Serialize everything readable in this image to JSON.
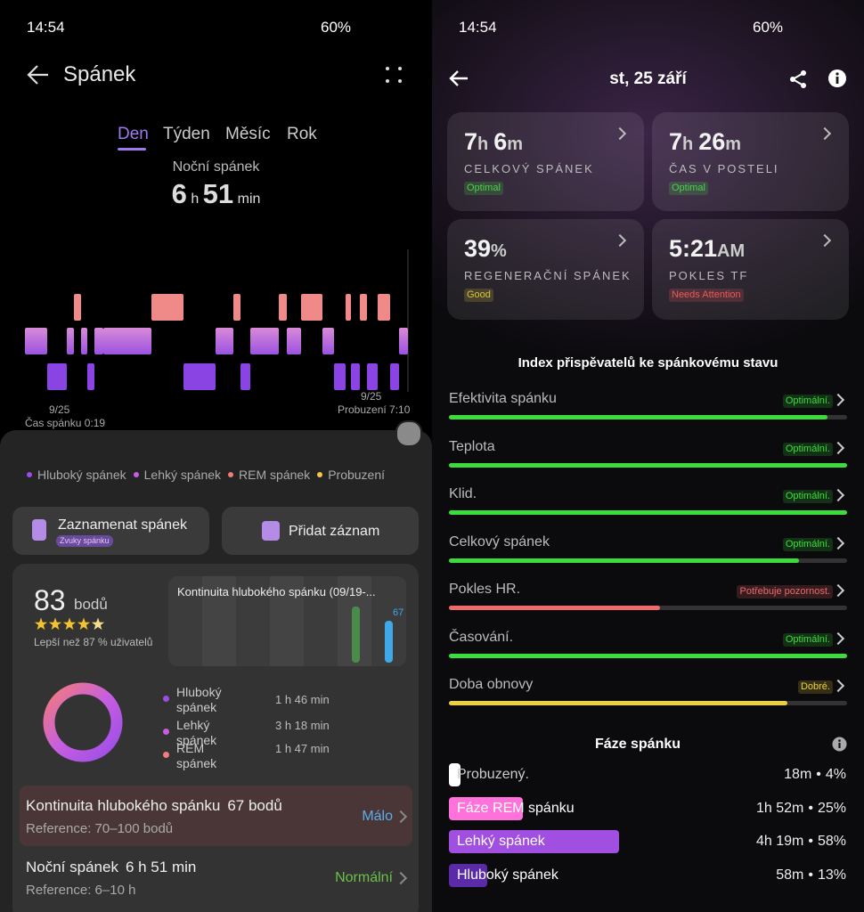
{
  "left": {
    "status": {
      "time": "14:54",
      "battery": "60%"
    },
    "header": {
      "title": "Spánek"
    },
    "tabs": [
      "Den",
      "Týden",
      "Měsíc",
      "Rok"
    ],
    "summary": {
      "label": "Noční spánek",
      "hours": "6",
      "hours_unit": "h",
      "minutes": "51",
      "minutes_unit": "min"
    },
    "hypnogram": {
      "start_date": "9/25",
      "start_label": "Čas spánku 0:19",
      "end_date": "9/25",
      "end_label": "Probuzení 7:10"
    },
    "legend": [
      {
        "label": "Hluboký spánek",
        "color": "#9b4de8"
      },
      {
        "label": "Lehký spánek",
        "color": "#c65ee0"
      },
      {
        "label": "REM spánek",
        "color": "#f27b7b"
      },
      {
        "label": "Probuzení",
        "color": "#f2c94c"
      }
    ],
    "buttons": [
      {
        "label": "Zaznamenat spánek",
        "sublabel": "Zvuky spánku"
      },
      {
        "label": "Přidat záznam"
      }
    ],
    "score": {
      "value": "83",
      "unit": "bodů",
      "comparison": "Lepší než 87 % uživatelů"
    },
    "continuity_chart": {
      "title": "Kontinuita hlubokého spánku (09/19-...",
      "value": 67,
      "max": 100
    },
    "breakdown": [
      {
        "label": "Hluboký spánek",
        "value": "1 h 46 min",
        "color": "#9b4de8"
      },
      {
        "label": "Lehký spánek",
        "value": "3 h 18 min",
        "color": "#c65ee0"
      },
      {
        "label": "REM spánek",
        "value": "1 h 47 min",
        "color": "#f27b7b"
      }
    ],
    "rows": [
      {
        "title": "Kontinuita hlubokého spánku",
        "value": "67 bodů",
        "reference": "Reference: 70–100 bodů",
        "status": "Málo",
        "color": "#5aaee8"
      },
      {
        "title": "Noční spánek",
        "value": "6 h 51 min",
        "reference": "Reference: 6–10 h",
        "status": "Normální",
        "color": "#6cc04a"
      }
    ]
  },
  "right": {
    "status": {
      "time": "14:54",
      "battery": "60%"
    },
    "header": {
      "date": "st, 25 září"
    },
    "cards": [
      {
        "value_parts": [
          "7",
          "h",
          "6",
          "m"
        ],
        "label": "CELKOVÝ SPÁNEK",
        "badge": "Optimal",
        "badge_color": "#4cd04c"
      },
      {
        "value_parts": [
          "7",
          "h",
          "26",
          "m"
        ],
        "label": "ČAS V POSTELI",
        "badge": "Optimal",
        "badge_color": "#4cd04c"
      },
      {
        "value_parts": [
          "39",
          "%"
        ],
        "label": "REGENERAČNÍ SPÁNEK",
        "badge": "Good",
        "badge_color": "#d9c43a"
      },
      {
        "value_parts": [
          "5:21",
          "AM"
        ],
        "label": "POKLES TF",
        "badge": "Needs Attention",
        "badge_color": "#e85a5a"
      }
    ],
    "index_title": "Index přispěvatelů ke spánkovému stavu",
    "contributors": [
      {
        "name": "Efektivita spánku",
        "status": "Optimální.",
        "value": 95,
        "color": "#3ddc3d"
      },
      {
        "name": "Teplota",
        "status": "Optimální.",
        "value": 100,
        "color": "#3ddc3d"
      },
      {
        "name": "Klid.",
        "status": "Optimální.",
        "value": 100,
        "color": "#3ddc3d"
      },
      {
        "name": "Celkový spánek",
        "status": "Optimální.",
        "value": 88,
        "color": "#3ddc3d"
      },
      {
        "name": "Pokles HR.",
        "status": "Potřebuje pozornost.",
        "value": 53,
        "color": "#f06a6a"
      },
      {
        "name": "Časování.",
        "status": "Optimální.",
        "value": 100,
        "color": "#3ddc3d"
      },
      {
        "name": "Doba obnovy",
        "status": "Dobré.",
        "value": 85,
        "color": "#ecd040"
      }
    ],
    "phases_title": "Fáze spánku",
    "separator": "•",
    "phases": [
      {
        "name": "Probuzený.",
        "duration": "18m",
        "percent": 4,
        "percent_label": "4%",
        "color": "#ffffff"
      },
      {
        "name": "Fáze REM spánku",
        "duration": "1h 52m",
        "percent": 25,
        "percent_label": "25%",
        "color": "#ff72dc"
      },
      {
        "name": "Lehký spánek",
        "duration": "4h 19m",
        "percent": 58,
        "percent_label": "58%",
        "color": "#a14fe0"
      },
      {
        "name": "Hluboký spánek",
        "duration": "58m",
        "percent": 13,
        "percent_label": "13%",
        "color": "#5a2aa8"
      }
    ]
  }
}
